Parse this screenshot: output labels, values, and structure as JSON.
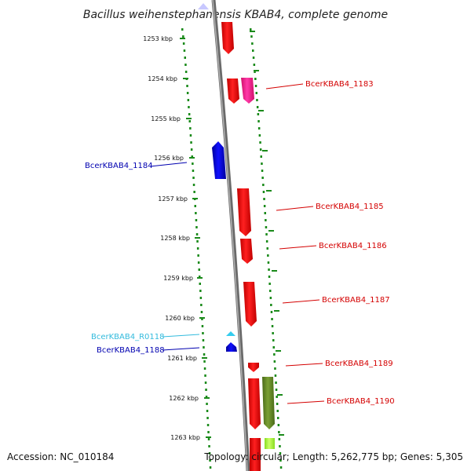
{
  "title": "Bacillus weihenstephanensis KBAB4, complete genome",
  "accession": "Accession: NC_010184",
  "summary": "Topology: circular; Length: 5,262,775 bp; Genes: 5,305",
  "ticks": [
    "1253 kbp",
    "1254 kbp",
    "1255 kbp",
    "1256 kbp",
    "1257 kbp",
    "1258 kbp",
    "1259 kbp",
    "1260 kbp",
    "1261 kbp",
    "1262 kbp",
    "1263 kbp"
  ],
  "labels": [
    {
      "text": "BcerKBAB4_1183",
      "color": "#d40000"
    },
    {
      "text": "BcerKBAB4_1184",
      "color": "#0000b0"
    },
    {
      "text": "BcerKBAB4_1185",
      "color": "#d40000"
    },
    {
      "text": "BcerKBAB4_1186",
      "color": "#d40000"
    },
    {
      "text": "BcerKBAB4_1187",
      "color": "#d40000"
    },
    {
      "text": "BcerKBAB4_R0118",
      "color": "#33bbdd"
    },
    {
      "text": "BcerKBAB4_1188",
      "color": "#0000b0"
    },
    {
      "text": "BcerKBAB4_1189",
      "color": "#d40000"
    },
    {
      "text": "BcerKBAB4_1190",
      "color": "#d40000"
    }
  ],
  "colors": {
    "cds_forward": "#ff1a1a",
    "cds_reverse": "#0000ee",
    "rna": "#33ccee",
    "pink": "#ff2a9a",
    "olive": "#6a8f2a",
    "lime": "#bbff44",
    "backbone": "#888888",
    "dots": "#1a8a1a"
  }
}
